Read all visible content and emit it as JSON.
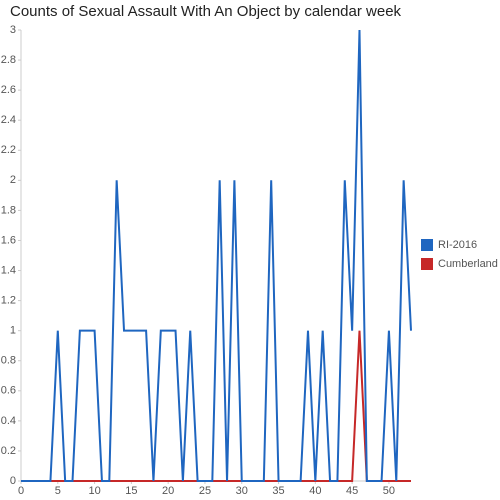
{
  "chart_data": {
    "type": "line",
    "title": "Counts of Sexual Assault With An Object by calendar week",
    "x": [
      0,
      1,
      2,
      3,
      4,
      5,
      6,
      7,
      8,
      9,
      10,
      11,
      12,
      13,
      14,
      15,
      16,
      17,
      18,
      19,
      20,
      21,
      22,
      23,
      24,
      25,
      26,
      27,
      28,
      29,
      30,
      31,
      32,
      33,
      34,
      35,
      36,
      37,
      38,
      39,
      40,
      41,
      42,
      43,
      44,
      45,
      46,
      47,
      48,
      49,
      50,
      51,
      52,
      53
    ],
    "series": [
      {
        "name": "RI-2016",
        "color": "#1f66c0",
        "values": [
          0,
          0,
          0,
          0,
          0,
          1,
          0,
          0,
          1,
          1,
          1,
          0,
          0,
          2,
          1,
          1,
          1,
          1,
          0,
          1,
          1,
          1,
          0,
          1,
          0,
          0,
          0,
          2,
          0,
          2,
          0,
          0,
          0,
          0,
          2,
          0,
          0,
          0,
          0,
          1,
          0,
          1,
          0,
          0,
          2,
          1,
          3,
          0,
          0,
          0,
          1,
          0,
          2,
          1
        ]
      },
      {
        "name": "Cumberland",
        "color": "#c62828",
        "values": [
          0,
          0,
          0,
          0,
          0,
          0,
          0,
          0,
          0,
          0,
          0,
          0,
          0,
          0,
          0,
          0,
          0,
          0,
          0,
          0,
          0,
          0,
          0,
          0,
          0,
          0,
          0,
          0,
          0,
          0,
          0,
          0,
          0,
          0,
          0,
          0,
          0,
          0,
          0,
          0,
          0,
          0,
          0,
          0,
          0,
          0,
          1,
          0,
          0,
          0,
          0,
          0,
          0,
          0
        ]
      }
    ],
    "xlim": [
      0,
      53
    ],
    "xticks": [
      0,
      5,
      10,
      15,
      20,
      25,
      30,
      35,
      40,
      45,
      50
    ],
    "ylim": [
      0,
      3
    ],
    "yticks": [
      0,
      0.2,
      0.4,
      0.6,
      0.8,
      1,
      1.2,
      1.4,
      1.6,
      1.8,
      2,
      2.2,
      2.4,
      2.6,
      2.8,
      3
    ],
    "legend": "right"
  }
}
